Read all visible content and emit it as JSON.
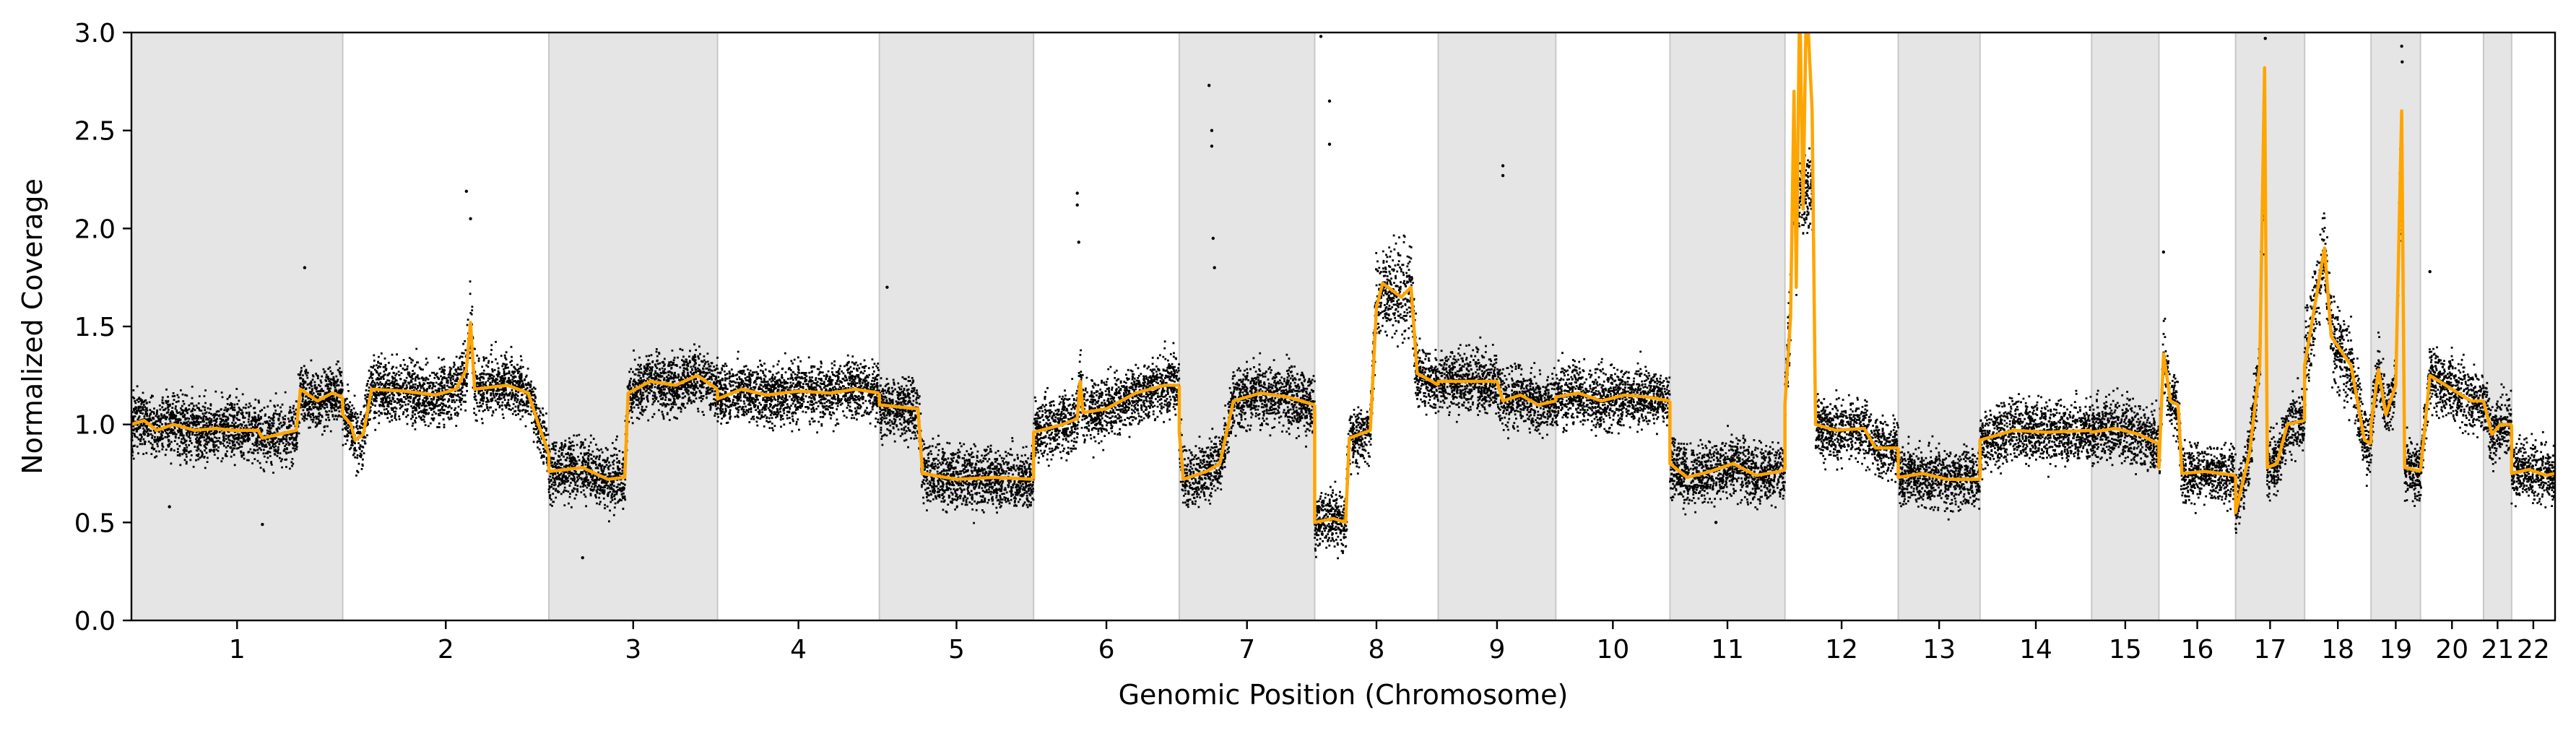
{
  "chart_data": {
    "type": "scatter",
    "title": "",
    "xlabel": "Genomic Position (Chromosome)",
    "ylabel": "Normalized Coverage",
    "ylim": [
      0,
      3.0
    ],
    "yticks": [
      "0.0",
      "0.5",
      "1.0",
      "1.5",
      "2.0",
      "2.5",
      "3.0"
    ],
    "grid": false,
    "legend": "none",
    "colors": {
      "points": "#000000",
      "segments": "#FFA500",
      "band": "#e5e5e5",
      "band_edge": "#c8c8c8"
    },
    "chromosomes": [
      {
        "label": "1",
        "size": 2.48,
        "shaded": true
      },
      {
        "label": "2",
        "size": 2.42,
        "shaded": false
      },
      {
        "label": "3",
        "size": 1.98,
        "shaded": true
      },
      {
        "label": "4",
        "size": 1.9,
        "shaded": false
      },
      {
        "label": "5",
        "size": 1.81,
        "shaded": true
      },
      {
        "label": "6",
        "size": 1.71,
        "shaded": false
      },
      {
        "label": "7",
        "size": 1.59,
        "shaded": true
      },
      {
        "label": "8",
        "size": 1.45,
        "shaded": false
      },
      {
        "label": "9",
        "size": 1.38,
        "shaded": true
      },
      {
        "label": "10",
        "size": 1.34,
        "shaded": false
      },
      {
        "label": "11",
        "size": 1.35,
        "shaded": true
      },
      {
        "label": "12",
        "size": 1.33,
        "shaded": false
      },
      {
        "label": "13",
        "size": 0.96,
        "shaded": true
      },
      {
        "label": "14",
        "size": 1.31,
        "shaded": false
      },
      {
        "label": "15",
        "size": 0.79,
        "shaded": true
      },
      {
        "label": "16",
        "size": 0.9,
        "shaded": false
      },
      {
        "label": "17",
        "size": 0.81,
        "shaded": true
      },
      {
        "label": "18",
        "size": 0.78,
        "shaded": false
      },
      {
        "label": "19",
        "size": 0.58,
        "shaded": true
      },
      {
        "label": "20",
        "size": 0.74,
        "shaded": false
      },
      {
        "label": "21",
        "size": 0.33,
        "shaded": true
      },
      {
        "label": "22",
        "size": 0.51,
        "shaded": false
      }
    ],
    "segments": [
      {
        "chrom": "1",
        "pts": [
          [
            0,
            1.0
          ],
          [
            0.06,
            1.02
          ],
          [
            0.12,
            0.97
          ],
          [
            0.2,
            1.0
          ],
          [
            0.3,
            0.97
          ],
          [
            0.4,
            0.98
          ],
          [
            0.48,
            0.97
          ],
          [
            0.6,
            0.97
          ],
          [
            0.62,
            0.93
          ],
          [
            0.78,
            0.97
          ],
          [
            0.8,
            1.18
          ],
          [
            0.88,
            1.12
          ],
          [
            0.95,
            1.16
          ],
          [
            1,
            1.14
          ]
        ]
      },
      {
        "chrom": "2",
        "pts": [
          [
            0,
            1.05
          ],
          [
            0.04,
            1.0
          ],
          [
            0.06,
            0.92
          ],
          [
            0.1,
            0.95
          ],
          [
            0.14,
            1.18
          ],
          [
            0.3,
            1.17
          ],
          [
            0.45,
            1.15
          ],
          [
            0.55,
            1.18
          ],
          [
            0.6,
            1.28
          ],
          [
            0.62,
            1.52
          ],
          [
            0.64,
            1.18
          ],
          [
            0.8,
            1.2
          ],
          [
            0.9,
            1.16
          ],
          [
            0.95,
            1.0
          ],
          [
            1,
            0.85
          ]
        ]
      },
      {
        "chrom": "3",
        "pts": [
          [
            0,
            0.76
          ],
          [
            0.2,
            0.78
          ],
          [
            0.35,
            0.72
          ],
          [
            0.45,
            0.73
          ],
          [
            0.47,
            1.16
          ],
          [
            0.6,
            1.22
          ],
          [
            0.75,
            1.2
          ],
          [
            0.88,
            1.25
          ],
          [
            1,
            1.18
          ]
        ]
      },
      {
        "chrom": "4",
        "pts": [
          [
            0,
            1.13
          ],
          [
            0.15,
            1.18
          ],
          [
            0.3,
            1.15
          ],
          [
            0.5,
            1.17
          ],
          [
            0.7,
            1.16
          ],
          [
            0.85,
            1.18
          ],
          [
            1,
            1.16
          ]
        ]
      },
      {
        "chrom": "5",
        "pts": [
          [
            0,
            1.1
          ],
          [
            0.25,
            1.08
          ],
          [
            0.28,
            0.75
          ],
          [
            0.5,
            0.72
          ],
          [
            0.75,
            0.73
          ],
          [
            1,
            0.72
          ]
        ]
      },
      {
        "chrom": "6",
        "pts": [
          [
            0,
            0.96
          ],
          [
            0.2,
            1.0
          ],
          [
            0.3,
            1.03
          ],
          [
            0.32,
            1.22
          ],
          [
            0.34,
            1.06
          ],
          [
            0.5,
            1.08
          ],
          [
            0.7,
            1.16
          ],
          [
            0.9,
            1.2
          ],
          [
            1,
            1.2
          ]
        ]
      },
      {
        "chrom": "7",
        "pts": [
          [
            0,
            0.96
          ],
          [
            0.03,
            0.72
          ],
          [
            0.2,
            0.76
          ],
          [
            0.3,
            0.8
          ],
          [
            0.4,
            1.12
          ],
          [
            0.6,
            1.16
          ],
          [
            0.8,
            1.14
          ],
          [
            1,
            1.1
          ]
        ]
      },
      {
        "chrom": "8",
        "pts": [
          [
            0,
            0.5
          ],
          [
            0.15,
            0.52
          ],
          [
            0.25,
            0.5
          ],
          [
            0.28,
            0.93
          ],
          [
            0.45,
            0.97
          ],
          [
            0.5,
            1.6
          ],
          [
            0.55,
            1.72
          ],
          [
            0.7,
            1.65
          ],
          [
            0.78,
            1.7
          ],
          [
            0.83,
            1.26
          ],
          [
            0.95,
            1.22
          ],
          [
            1,
            1.2
          ]
        ]
      },
      {
        "chrom": "9",
        "pts": [
          [
            0,
            1.22
          ],
          [
            0.5,
            1.22
          ],
          [
            0.55,
            1.12
          ],
          [
            0.7,
            1.15
          ],
          [
            0.85,
            1.1
          ],
          [
            1,
            1.12
          ]
        ]
      },
      {
        "chrom": "10",
        "pts": [
          [
            0,
            1.14
          ],
          [
            0.2,
            1.16
          ],
          [
            0.4,
            1.12
          ],
          [
            0.6,
            1.15
          ],
          [
            0.8,
            1.14
          ],
          [
            1,
            1.12
          ]
        ]
      },
      {
        "chrom": "11",
        "pts": [
          [
            0,
            0.8
          ],
          [
            0.15,
            0.73
          ],
          [
            0.35,
            0.76
          ],
          [
            0.55,
            0.8
          ],
          [
            0.75,
            0.74
          ],
          [
            0.95,
            0.76
          ],
          [
            1,
            0.77
          ]
        ]
      },
      {
        "chrom": "12",
        "pts": [
          [
            0,
            1.1
          ],
          [
            0.05,
            1.55
          ],
          [
            0.08,
            2.7
          ],
          [
            0.1,
            1.7
          ],
          [
            0.13,
            3.2
          ],
          [
            0.16,
            2.1
          ],
          [
            0.19,
            3.2
          ],
          [
            0.24,
            2.6
          ],
          [
            0.27,
            1.0
          ],
          [
            0.45,
            0.97
          ],
          [
            0.7,
            0.98
          ],
          [
            0.8,
            0.88
          ],
          [
            1,
            0.88
          ]
        ]
      },
      {
        "chrom": "13",
        "pts": [
          [
            0,
            0.73
          ],
          [
            0.3,
            0.75
          ],
          [
            0.6,
            0.72
          ],
          [
            1,
            0.72
          ]
        ]
      },
      {
        "chrom": "14",
        "pts": [
          [
            0,
            0.92
          ],
          [
            0.3,
            0.97
          ],
          [
            0.6,
            0.96
          ],
          [
            1,
            0.97
          ]
        ]
      },
      {
        "chrom": "15",
        "pts": [
          [
            0,
            0.96
          ],
          [
            0.35,
            0.98
          ],
          [
            0.7,
            0.95
          ],
          [
            1,
            0.9
          ]
        ]
      },
      {
        "chrom": "16",
        "pts": [
          [
            0,
            0.78
          ],
          [
            0.06,
            1.36
          ],
          [
            0.15,
            1.12
          ],
          [
            0.25,
            1.1
          ],
          [
            0.3,
            0.75
          ],
          [
            0.6,
            0.76
          ],
          [
            1,
            0.74
          ]
        ]
      },
      {
        "chrom": "17",
        "pts": [
          [
            0,
            0.55
          ],
          [
            0.2,
            0.85
          ],
          [
            0.35,
            1.3
          ],
          [
            0.42,
            2.82
          ],
          [
            0.46,
            0.78
          ],
          [
            0.6,
            0.8
          ],
          [
            0.75,
            1.0
          ],
          [
            1,
            1.02
          ]
        ]
      },
      {
        "chrom": "18",
        "pts": [
          [
            0,
            1.3
          ],
          [
            0.3,
            1.9
          ],
          [
            0.4,
            1.45
          ],
          [
            0.7,
            1.3
          ],
          [
            0.9,
            0.92
          ],
          [
            1,
            0.9
          ]
        ]
      },
      {
        "chrom": "19",
        "pts": [
          [
            0,
            1.0
          ],
          [
            0.15,
            1.28
          ],
          [
            0.3,
            1.05
          ],
          [
            0.5,
            1.2
          ],
          [
            0.62,
            2.6
          ],
          [
            0.68,
            0.78
          ],
          [
            1,
            0.76
          ]
        ]
      },
      {
        "chrom": "20",
        "pts": [
          [
            0,
            0.76
          ],
          [
            0.15,
            1.25
          ],
          [
            0.5,
            1.18
          ],
          [
            0.8,
            1.12
          ],
          [
            1,
            1.12
          ]
        ]
      },
      {
        "chrom": "21",
        "pts": [
          [
            0,
            1.12
          ],
          [
            0.3,
            0.95
          ],
          [
            0.6,
            1.0
          ],
          [
            1,
            1.0
          ]
        ]
      },
      {
        "chrom": "22",
        "pts": [
          [
            0,
            0.75
          ],
          [
            0.4,
            0.77
          ],
          [
            0.8,
            0.74
          ],
          [
            1,
            0.75
          ]
        ]
      }
    ],
    "outliers": [
      {
        "chrom": "6",
        "x": 0.3,
        "y": 2.18
      },
      {
        "chrom": "6",
        "x": 0.3,
        "y": 2.12
      },
      {
        "chrom": "6",
        "x": 0.31,
        "y": 1.93
      },
      {
        "chrom": "7",
        "x": 0.22,
        "y": 2.73
      },
      {
        "chrom": "7",
        "x": 0.24,
        "y": 2.5
      },
      {
        "chrom": "7",
        "x": 0.24,
        "y": 2.42
      },
      {
        "chrom": "7",
        "x": 0.25,
        "y": 1.95
      },
      {
        "chrom": "7",
        "x": 0.26,
        "y": 1.8
      },
      {
        "chrom": "8",
        "x": 0.05,
        "y": 2.98
      },
      {
        "chrom": "8",
        "x": 0.12,
        "y": 2.65
      },
      {
        "chrom": "8",
        "x": 0.12,
        "y": 2.43
      },
      {
        "chrom": "9",
        "x": 0.55,
        "y": 2.32
      },
      {
        "chrom": "9",
        "x": 0.55,
        "y": 2.27
      },
      {
        "chrom": "2",
        "x": 0.6,
        "y": 2.19
      },
      {
        "chrom": "2",
        "x": 0.62,
        "y": 2.05
      },
      {
        "chrom": "17",
        "x": 0.43,
        "y": 2.97
      },
      {
        "chrom": "19",
        "x": 0.62,
        "y": 2.93
      },
      {
        "chrom": "19",
        "x": 0.63,
        "y": 2.85
      },
      {
        "chrom": "16",
        "x": 0.06,
        "y": 1.88
      },
      {
        "chrom": "20",
        "x": 0.15,
        "y": 1.78
      },
      {
        "chrom": "1",
        "x": 0.82,
        "y": 1.8
      },
      {
        "chrom": "5",
        "x": 0.05,
        "y": 1.7
      },
      {
        "chrom": "1",
        "x": 0.62,
        "y": 0.49
      },
      {
        "chrom": "1",
        "x": 0.18,
        "y": 0.58
      },
      {
        "chrom": "3",
        "x": 0.2,
        "y": 0.32
      },
      {
        "chrom": "11",
        "x": 0.4,
        "y": 0.5
      }
    ]
  }
}
